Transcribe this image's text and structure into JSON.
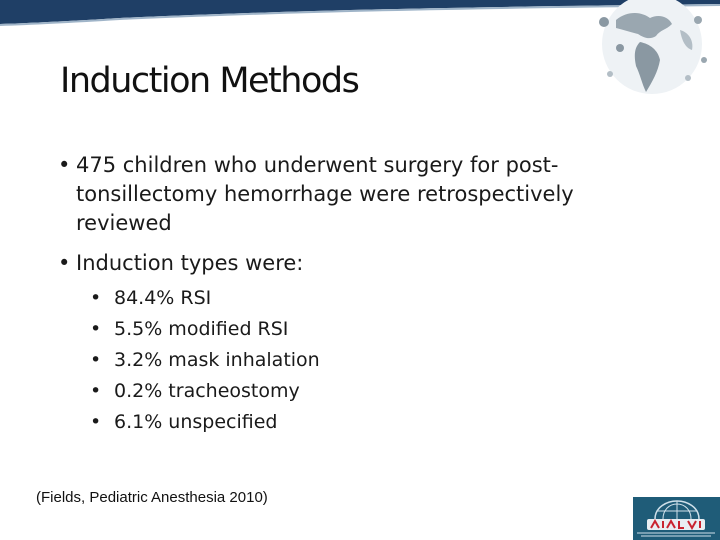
{
  "slide": {
    "title": "Induction Methods",
    "bullets": [
      "475 children who underwent surgery for post-tonsillectomy hemorrhage were retrospectively reviewed",
      "Induction types were:"
    ],
    "induction_types": [
      "84.4% RSI",
      "5.5% modified RSI",
      "3.2% mask inhalation",
      "0.2% tracheostomy",
      "6.1% unspecified"
    ],
    "citation": "(Fields, Pediatric Anesthesia 2010)",
    "bullet_glyph": "•"
  },
  "colors": {
    "band": "#1f3f66",
    "logo_bg": "#1f5c78",
    "logo_text": "#c9232f"
  },
  "icons": {
    "header_graphic": "globe-icon",
    "footer_logo": "society-logo"
  }
}
